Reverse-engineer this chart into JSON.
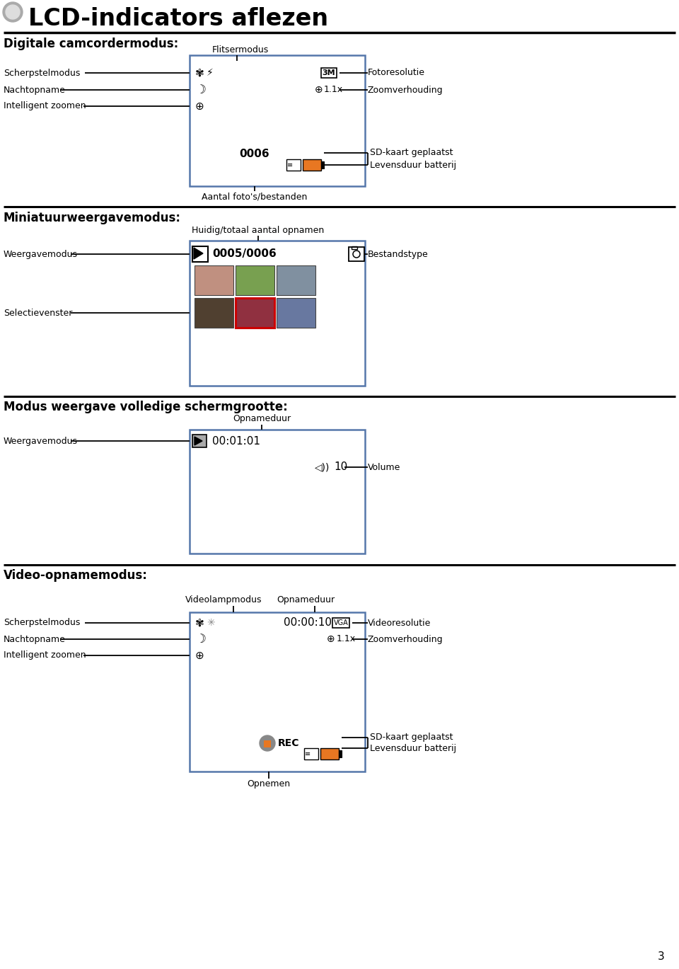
{
  "title": "LCD-indicators aflezen",
  "bg_color": "#ffffff",
  "box_border_color": "#5577aa",
  "section1_title": "Digitale camcordermodus:",
  "section2_title": "Miniatuurweergavemodus:",
  "section3_title": "Modus weergave volledige schermgrootte:",
  "section4_title": "Video-opnamemodus:",
  "page_number": "3",
  "orange_color": "#E87722",
  "gray_color": "#888888",
  "red_color": "#CC0000",
  "dark_gray": "#555555"
}
